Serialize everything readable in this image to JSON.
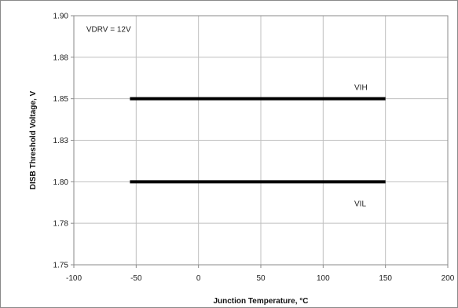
{
  "chart_data": {
    "type": "line",
    "title": "",
    "xlabel": "Junction Temperature, °C",
    "ylabel": "DISB Threshold Voltage, V",
    "xlim": [
      -100,
      200
    ],
    "ylim": [
      1.75,
      1.9
    ],
    "xticks": [
      -100,
      -50,
      0,
      50,
      100,
      150,
      200
    ],
    "xtick_labels": [
      "-100",
      "-50",
      "0",
      "50",
      "100",
      "150",
      "200"
    ],
    "yticks": [
      1.75,
      1.775,
      1.8,
      1.825,
      1.85,
      1.875,
      1.9
    ],
    "ytick_labels": [
      "1.75",
      "1.78",
      "1.80",
      "1.83",
      "1.85",
      "1.88",
      "1.90"
    ],
    "grid": true,
    "legend": "none",
    "series": [
      {
        "name": "VIH",
        "x": [
          -55,
          150
        ],
        "y": [
          1.85,
          1.85
        ],
        "color": "#000000"
      },
      {
        "name": "VIL",
        "x": [
          -55,
          150
        ],
        "y": [
          1.8,
          1.8
        ],
        "color": "#000000"
      }
    ],
    "annotations": [
      {
        "text": "VDRV = 12V",
        "x": -90,
        "y": 1.892
      },
      {
        "text": "VIH",
        "x": 125,
        "y": 1.857
      },
      {
        "text": "VIL",
        "x": 125,
        "y": 1.787
      }
    ]
  }
}
